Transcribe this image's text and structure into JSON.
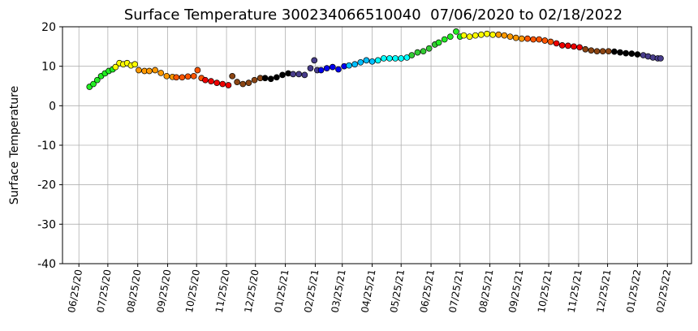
{
  "chart_data": {
    "type": "scatter",
    "title": "Surface Temperature 300234066510040  07/06/2020 to 02/18/2022",
    "y_label": "Surface Temperature",
    "xlim": [
      "06/08/20",
      "03/22/22"
    ],
    "xticks": [
      "06/25/20",
      "07/25/20",
      "08/25/20",
      "09/25/20",
      "10/25/20",
      "11/25/20",
      "12/25/20",
      "01/25/21",
      "02/25/21",
      "03/25/21",
      "04/25/21",
      "05/25/21",
      "06/25/21",
      "07/25/21",
      "08/25/21",
      "09/25/21",
      "10/25/21",
      "11/25/21",
      "12/25/21",
      "01/25/22",
      "02/25/22"
    ],
    "ylim": [
      -40,
      20
    ],
    "yticks": [
      -40,
      -30,
      -20,
      -10,
      0,
      10,
      20
    ],
    "grid": true,
    "series": [
      {
        "color": "#22ee22",
        "x": [
          "07/06/20",
          "07/10/20",
          "07/14/20",
          "07/18/20",
          "07/22/20",
          "07/26/20",
          "07/30/20"
        ],
        "values": [
          4.8,
          5.5,
          6.5,
          7.5,
          8.2,
          8.8,
          9.2
        ]
      },
      {
        "color": "#ffff00",
        "x": [
          "08/02/20",
          "08/06/20",
          "08/10/20",
          "08/14/20",
          "08/18/20",
          "08/22/20"
        ],
        "values": [
          9.8,
          10.8,
          10.5,
          10.8,
          10.2,
          10.5
        ]
      },
      {
        "color": "#ff9900",
        "x": [
          "08/26/20",
          "09/01/20",
          "09/06/20",
          "09/12/20",
          "09/18/20",
          "09/24/20",
          "09/30/20"
        ],
        "values": [
          9.0,
          8.8,
          8.8,
          9.0,
          8.3,
          7.5,
          7.3
        ]
      },
      {
        "color": "#ff5500",
        "x": [
          "10/04/20",
          "10/10/20",
          "10/16/20",
          "10/22/20",
          "10/26/20",
          "10/30/20"
        ],
        "values": [
          7.2,
          7.2,
          7.4,
          7.5,
          9.0,
          7.0
        ]
      },
      {
        "color": "#ee0000",
        "x": [
          "11/03/20",
          "11/09/20",
          "11/15/20",
          "11/21/20",
          "11/27/20"
        ],
        "values": [
          6.5,
          6.2,
          5.8,
          5.5,
          5.2
        ]
      },
      {
        "color": "#8b4513",
        "x": [
          "12/01/20",
          "12/06/20",
          "12/12/20",
          "12/18/20",
          "12/24/20",
          "12/30/20"
        ],
        "values": [
          7.5,
          6.0,
          5.5,
          5.8,
          6.5,
          7.0
        ]
      },
      {
        "color": "#000000",
        "x": [
          "01/04/21",
          "01/10/21",
          "01/16/21",
          "01/22/21",
          "01/28/21"
        ],
        "values": [
          7.0,
          6.8,
          7.2,
          7.8,
          8.2
        ]
      },
      {
        "color": "#483d8b",
        "x": [
          "02/02/21",
          "02/08/21",
          "02/14/21",
          "02/20/21",
          "02/24/21",
          "02/27/21"
        ],
        "values": [
          8.0,
          8.0,
          7.8,
          9.5,
          11.5,
          9.0
        ]
      },
      {
        "color": "#0000ee",
        "x": [
          "03/03/21",
          "03/09/21",
          "03/15/21",
          "03/21/21",
          "03/27/21"
        ],
        "values": [
          9.0,
          9.5,
          9.8,
          9.2,
          10.0
        ]
      },
      {
        "color": "#00bfff",
        "x": [
          "04/01/21",
          "04/07/21",
          "04/13/21",
          "04/19/21",
          "04/25/21"
        ],
        "values": [
          10.2,
          10.5,
          11.0,
          11.5,
          11.2
        ]
      },
      {
        "color": "#00ffff",
        "x": [
          "05/01/21",
          "05/07/21",
          "05/13/21",
          "05/19/21",
          "05/25/21",
          "05/31/21"
        ],
        "values": [
          11.5,
          12.0,
          12.0,
          12.0,
          12.0,
          12.2
        ]
      },
      {
        "color": "#33cc33",
        "x": [
          "06/05/21",
          "06/11/21",
          "06/17/21",
          "06/23/21",
          "06/29/21"
        ],
        "values": [
          12.8,
          13.5,
          13.8,
          14.5,
          15.5
        ]
      },
      {
        "color": "#22ee22",
        "x": [
          "07/03/21",
          "07/09/21",
          "07/15/21",
          "07/21/21",
          "07/25/21"
        ],
        "values": [
          16.0,
          16.8,
          17.5,
          18.8,
          17.5
        ]
      },
      {
        "color": "#ffff00",
        "x": [
          "07/29/21",
          "08/04/21",
          "08/10/21",
          "08/16/21",
          "08/22/21",
          "08/28/21"
        ],
        "values": [
          17.8,
          17.5,
          17.8,
          18.0,
          18.2,
          18.0
        ]
      },
      {
        "color": "#ff9900",
        "x": [
          "09/03/21",
          "09/09/21",
          "09/15/21",
          "09/21/21",
          "09/27/21"
        ],
        "values": [
          18.0,
          17.8,
          17.5,
          17.2,
          17.0
        ]
      },
      {
        "color": "#ff5500",
        "x": [
          "10/03/21",
          "10/09/21",
          "10/15/21",
          "10/21/21",
          "10/27/21"
        ],
        "values": [
          17.0,
          16.8,
          16.8,
          16.5,
          16.2
        ]
      },
      {
        "color": "#ee0000",
        "x": [
          "11/02/21",
          "11/08/21",
          "11/14/21",
          "11/20/21",
          "11/26/21"
        ],
        "values": [
          15.8,
          15.3,
          15.2,
          15.0,
          14.8
        ]
      },
      {
        "color": "#8b4513",
        "x": [
          "12/02/21",
          "12/08/21",
          "12/14/21",
          "12/20/21",
          "12/26/21"
        ],
        "values": [
          14.3,
          14.0,
          13.8,
          13.8,
          13.8
        ]
      },
      {
        "color": "#000000",
        "x": [
          "01/01/22",
          "01/07/22",
          "01/13/22",
          "01/19/22",
          "01/25/22"
        ],
        "values": [
          13.7,
          13.5,
          13.3,
          13.2,
          13.0
        ]
      },
      {
        "color": "#483d8b",
        "x": [
          "01/31/22",
          "02/05/22",
          "02/10/22",
          "02/15/22",
          "02/18/22"
        ],
        "values": [
          12.8,
          12.5,
          12.2,
          12.0,
          12.0
        ]
      }
    ]
  }
}
